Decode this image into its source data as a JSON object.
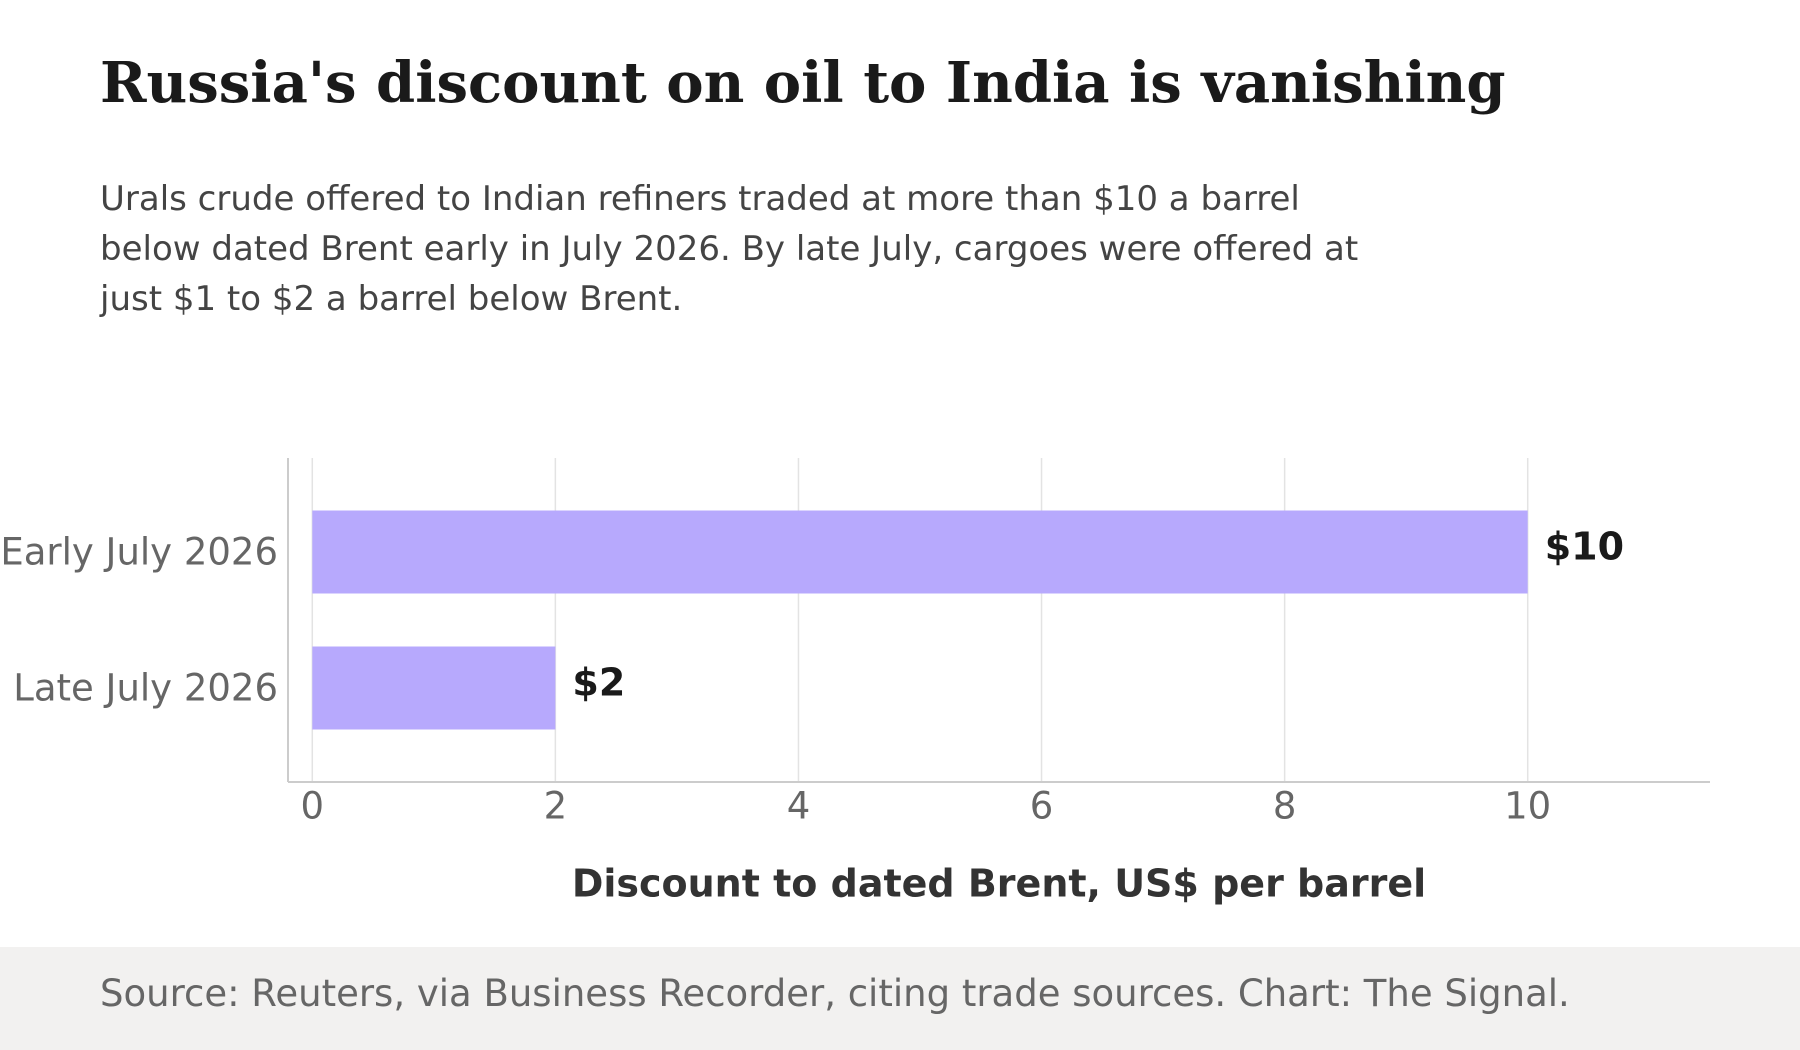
{
  "chart_data": {
    "type": "hbar",
    "title": "Russia's discount on oil to India is vanishing",
    "subtitle": "Urals crude offered to Indian refiners traded at more than $10 a barrel below dated Brent early in July 2026. By late July, cargoes were offered at just $1 to $2 a barrel below Brent.",
    "categories": [
      "Early July 2026",
      "Late July 2026"
    ],
    "values": [
      10,
      2
    ],
    "value_labels": [
      "$10",
      "$2"
    ],
    "color": "#b7a9fd",
    "xlabel": "Discount to dated Brent, US$ per barrel",
    "xlim": [
      -0.2,
      11.5
    ],
    "xticks": [
      0,
      2,
      4,
      6,
      8,
      10
    ],
    "grid": true,
    "source": "Source: Reuters, via Business Recorder, citing trade sources. Chart: The Signal."
  }
}
